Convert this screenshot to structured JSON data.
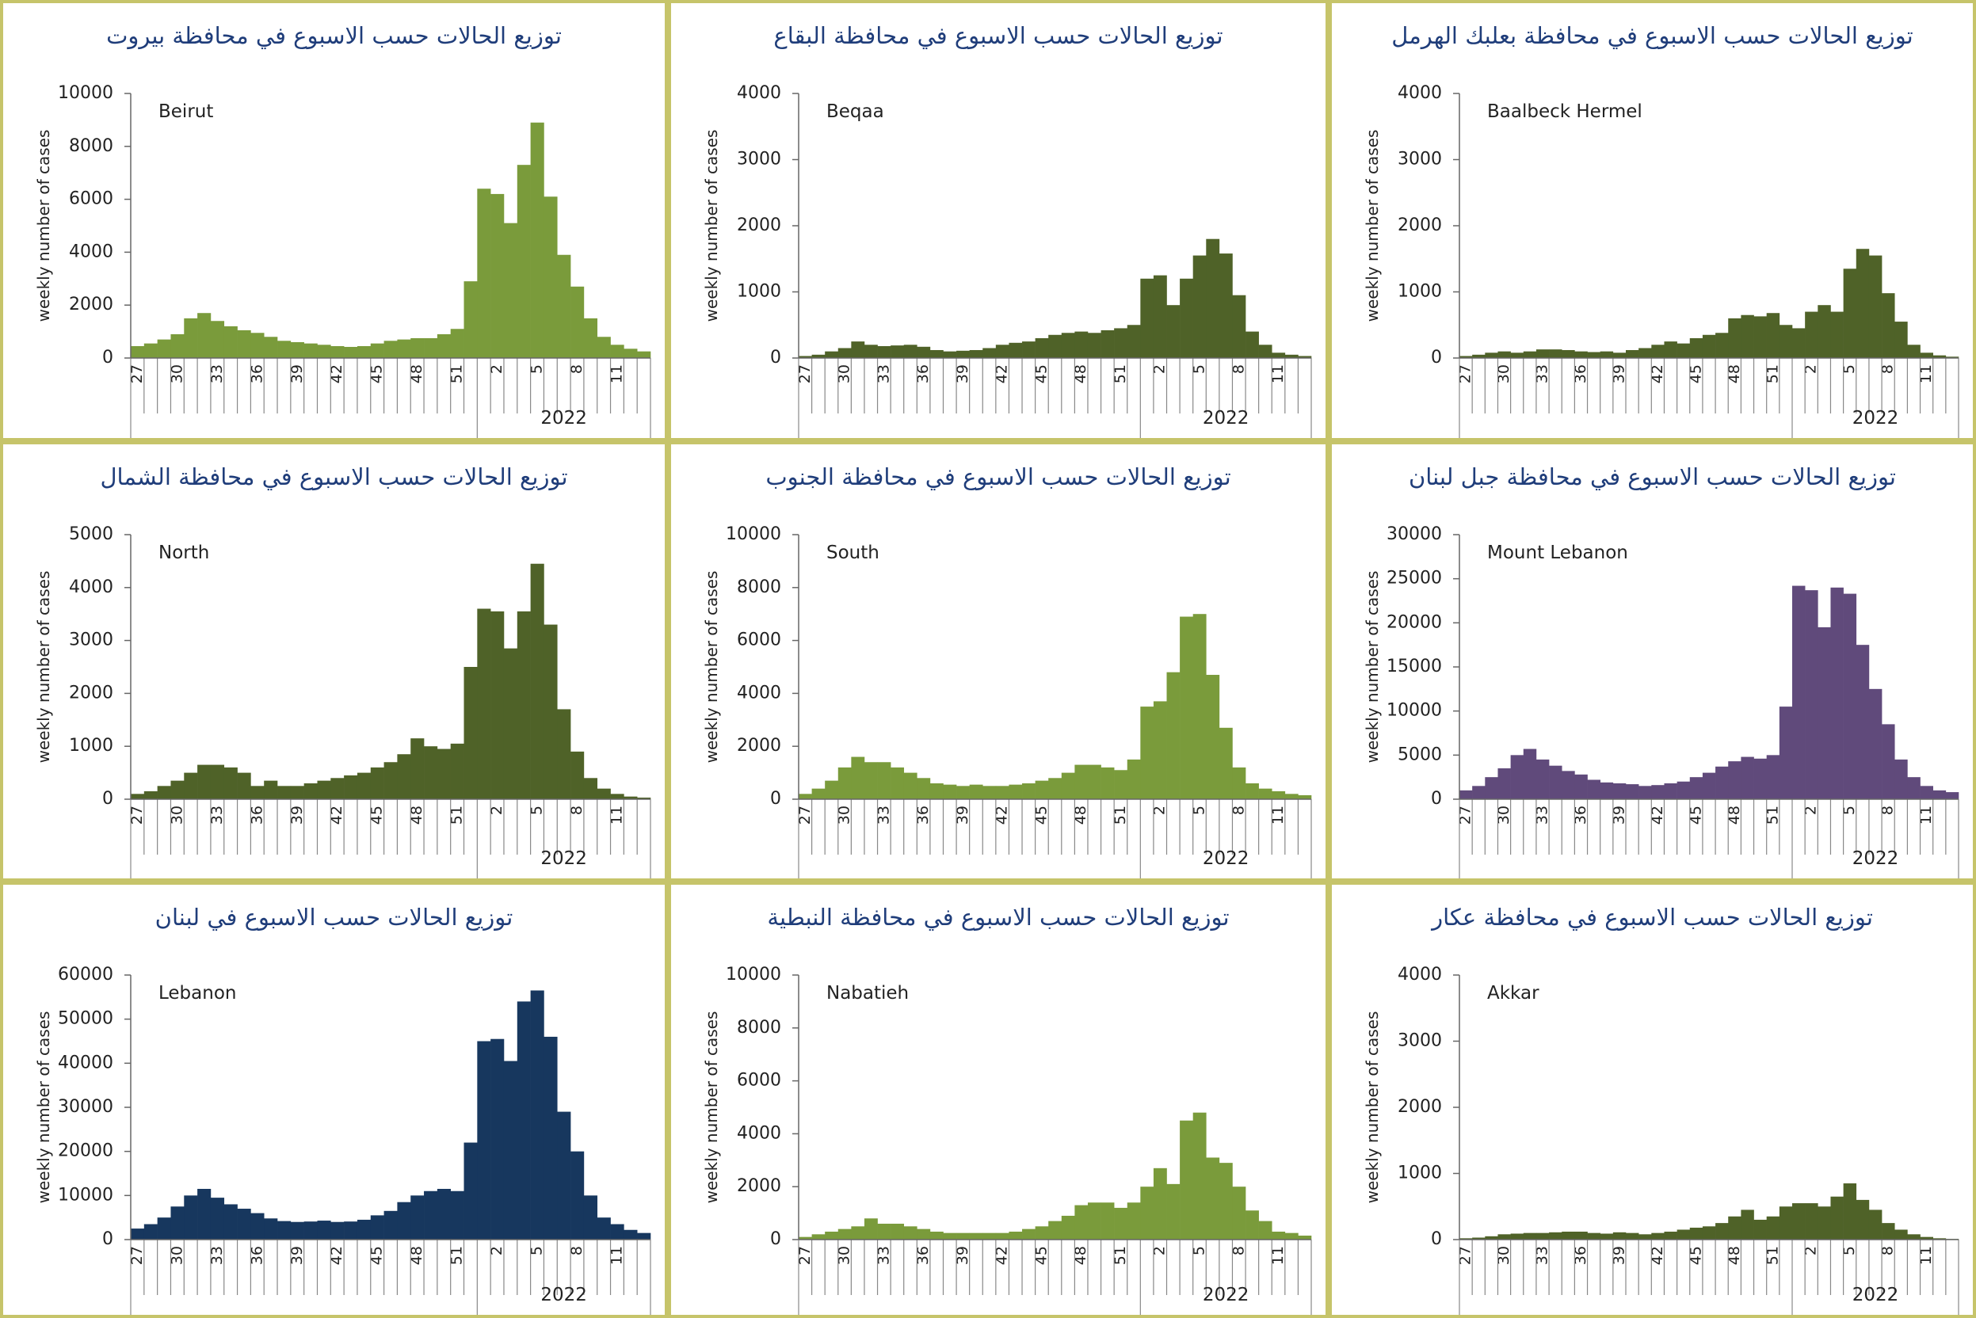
{
  "chart_data": [
    {
      "type": "bar",
      "title": "توزيع الحالات حسب الاسبوع في محافظة بيروت",
      "annotation": "Beirut",
      "y_label": "weekly number of cases",
      "group_label": "2022",
      "color": "#7a9b3b",
      "categories": [
        27,
        null,
        null,
        30,
        null,
        null,
        33,
        null,
        null,
        36,
        null,
        null,
        39,
        null,
        null,
        42,
        null,
        null,
        45,
        null,
        null,
        48,
        null,
        null,
        51,
        null,
        null,
        2,
        null,
        null,
        5,
        null,
        null,
        8,
        null,
        null,
        11,
        null,
        null
      ],
      "values": [
        450,
        550,
        700,
        900,
        1500,
        1700,
        1400,
        1200,
        1050,
        950,
        800,
        650,
        600,
        550,
        500,
        450,
        420,
        450,
        550,
        650,
        700,
        750,
        750,
        900,
        1100,
        2900,
        6400,
        6200,
        5100,
        7300,
        8900,
        6100,
        3900,
        2700,
        1500,
        800,
        500,
        350,
        250
      ],
      "ylim": [
        0,
        10000
      ],
      "yticks": [
        0,
        2000,
        4000,
        6000,
        8000,
        10000
      ]
    },
    {
      "type": "bar",
      "title": "توزيع الحالات حسب الاسبوع في محافظة البقاع",
      "annotation": "Beqaa",
      "y_label": "weekly number of cases",
      "group_label": "2022",
      "color": "#4f6228",
      "categories": [
        27,
        null,
        null,
        30,
        null,
        null,
        33,
        null,
        null,
        36,
        null,
        null,
        39,
        null,
        null,
        42,
        null,
        null,
        45,
        null,
        null,
        48,
        null,
        null,
        51,
        null,
        null,
        2,
        null,
        null,
        5,
        null,
        null,
        8,
        null,
        null,
        11,
        null,
        null
      ],
      "values": [
        30,
        50,
        100,
        150,
        250,
        200,
        180,
        190,
        200,
        170,
        120,
        100,
        110,
        120,
        150,
        200,
        230,
        250,
        300,
        350,
        380,
        400,
        380,
        420,
        450,
        500,
        1200,
        1250,
        800,
        1200,
        1550,
        1800,
        1580,
        950,
        400,
        200,
        80,
        50,
        30
      ],
      "ylim": [
        0,
        4000
      ],
      "yticks": [
        0,
        1000,
        2000,
        3000,
        4000
      ]
    },
    {
      "type": "bar",
      "title": "توزيع الحالات حسب الاسبوع في محافظة بعلبك الهرمل",
      "annotation": "Baalbeck Hermel",
      "y_label": "weekly number of cases",
      "group_label": "2022",
      "color": "#4f6228",
      "categories": [
        27,
        null,
        null,
        30,
        null,
        null,
        33,
        null,
        null,
        36,
        null,
        null,
        39,
        null,
        null,
        42,
        null,
        null,
        45,
        null,
        null,
        48,
        null,
        null,
        51,
        null,
        null,
        2,
        null,
        null,
        5,
        null,
        null,
        8,
        null,
        null,
        11,
        null,
        null
      ],
      "values": [
        30,
        50,
        80,
        100,
        80,
        100,
        130,
        130,
        120,
        100,
        90,
        100,
        80,
        120,
        150,
        200,
        250,
        220,
        300,
        350,
        380,
        600,
        650,
        630,
        680,
        500,
        450,
        700,
        800,
        700,
        1350,
        1650,
        1550,
        980,
        550,
        200,
        80,
        40,
        20
      ],
      "ylim": [
        0,
        4000
      ],
      "yticks": [
        0,
        1000,
        2000,
        3000,
        4000
      ]
    },
    {
      "type": "bar",
      "title": "توزيع الحالات حسب الاسبوع في محافظة الشمال",
      "annotation": "North",
      "y_label": "weekly number of cases",
      "group_label": "2022",
      "color": "#4f6228",
      "categories": [
        27,
        null,
        null,
        30,
        null,
        null,
        33,
        null,
        null,
        36,
        null,
        null,
        39,
        null,
        null,
        42,
        null,
        null,
        45,
        null,
        null,
        48,
        null,
        null,
        51,
        null,
        null,
        2,
        null,
        null,
        5,
        null,
        null,
        8,
        null,
        null,
        11,
        null,
        null
      ],
      "values": [
        100,
        150,
        250,
        350,
        500,
        650,
        650,
        600,
        500,
        250,
        350,
        250,
        250,
        300,
        350,
        400,
        450,
        500,
        600,
        700,
        850,
        1150,
        1000,
        950,
        1050,
        2500,
        3600,
        3550,
        2850,
        3550,
        4450,
        3300,
        1700,
        900,
        400,
        200,
        100,
        50,
        30
      ],
      "ylim": [
        0,
        5000
      ],
      "yticks": [
        0,
        1000,
        2000,
        3000,
        4000,
        5000
      ]
    },
    {
      "type": "bar",
      "title": "توزيع الحالات حسب الاسبوع في محافظة الجنوب",
      "annotation": "South",
      "y_label": "weekly number of cases",
      "group_label": "2022",
      "color": "#7a9b3b",
      "categories": [
        27,
        null,
        null,
        30,
        null,
        null,
        33,
        null,
        null,
        36,
        null,
        null,
        39,
        null,
        null,
        42,
        null,
        null,
        45,
        null,
        null,
        48,
        null,
        null,
        51,
        null,
        null,
        2,
        null,
        null,
        5,
        null,
        null,
        8,
        null,
        null,
        11,
        null,
        null
      ],
      "values": [
        200,
        400,
        700,
        1200,
        1600,
        1400,
        1400,
        1200,
        1000,
        800,
        600,
        550,
        500,
        550,
        500,
        500,
        550,
        600,
        700,
        800,
        1000,
        1300,
        1300,
        1200,
        1100,
        1500,
        3500,
        3700,
        4800,
        6900,
        7000,
        4700,
        2700,
        1200,
        600,
        400,
        300,
        200,
        150
      ],
      "ylim": [
        0,
        10000
      ],
      "yticks": [
        0,
        2000,
        4000,
        6000,
        8000,
        10000
      ]
    },
    {
      "type": "bar",
      "title": "توزيع الحالات حسب الاسبوع في محافظة جبل لبنان",
      "annotation": "Mount Lebanon",
      "y_label": "weekly number of cases",
      "group_label": "2022",
      "color": "#604a7b",
      "categories": [
        27,
        null,
        null,
        30,
        null,
        null,
        33,
        null,
        null,
        36,
        null,
        null,
        39,
        null,
        null,
        42,
        null,
        null,
        45,
        null,
        null,
        48,
        null,
        null,
        51,
        null,
        null,
        2,
        null,
        null,
        5,
        null,
        null,
        8,
        null,
        null,
        11,
        null,
        null
      ],
      "values": [
        1000,
        1500,
        2500,
        3500,
        5000,
        5700,
        4500,
        3800,
        3200,
        2800,
        2200,
        1900,
        1800,
        1700,
        1500,
        1600,
        1800,
        2000,
        2500,
        3000,
        3700,
        4300,
        4800,
        4600,
        5000,
        10500,
        24200,
        23700,
        19500,
        24000,
        23300,
        17500,
        12500,
        8500,
        4500,
        2500,
        1500,
        1000,
        800
      ],
      "ylim": [
        0,
        30000
      ],
      "yticks": [
        0,
        5000,
        10000,
        15000,
        20000,
        25000,
        30000
      ]
    },
    {
      "type": "bar",
      "title": "توزيع الحالات حسب الاسبوع في لبنان",
      "annotation": "Lebanon",
      "y_label": "weekly number of cases",
      "group_label": "2022",
      "color": "#17375e",
      "categories": [
        27,
        null,
        null,
        30,
        null,
        null,
        33,
        null,
        null,
        36,
        null,
        null,
        39,
        null,
        null,
        42,
        null,
        null,
        45,
        null,
        null,
        48,
        null,
        null,
        51,
        null,
        null,
        2,
        null,
        null,
        5,
        null,
        null,
        8,
        null,
        null,
        11,
        null,
        null
      ],
      "values": [
        2500,
        3500,
        5000,
        7500,
        10000,
        11500,
        9500,
        8000,
        7000,
        6000,
        4800,
        4200,
        4000,
        4100,
        4300,
        4000,
        4100,
        4500,
        5500,
        6500,
        8500,
        10000,
        11000,
        11500,
        11000,
        22000,
        45000,
        45500,
        40500,
        54000,
        56500,
        46000,
        29000,
        20000,
        10000,
        5000,
        3500,
        2200,
        1500
      ],
      "ylim": [
        0,
        60000
      ],
      "yticks": [
        0,
        10000,
        20000,
        30000,
        40000,
        50000,
        60000
      ]
    },
    {
      "type": "bar",
      "title": "توزيع الحالات حسب الاسبوع في محافظة النبطية",
      "annotation": "Nabatieh",
      "y_label": "weekly number of cases",
      "group_label": "2022",
      "color": "#7a9b3b",
      "categories": [
        27,
        null,
        null,
        30,
        null,
        null,
        33,
        null,
        null,
        36,
        null,
        null,
        39,
        null,
        null,
        42,
        null,
        null,
        45,
        null,
        null,
        48,
        null,
        null,
        51,
        null,
        null,
        2,
        null,
        null,
        5,
        null,
        null,
        8,
        null,
        null,
        11,
        null,
        null
      ],
      "values": [
        100,
        200,
        300,
        400,
        500,
        800,
        600,
        600,
        500,
        400,
        300,
        250,
        250,
        250,
        250,
        250,
        300,
        400,
        500,
        700,
        900,
        1300,
        1400,
        1400,
        1200,
        1400,
        2000,
        2700,
        2100,
        4500,
        4800,
        3100,
        2900,
        2000,
        1100,
        700,
        300,
        250,
        150
      ],
      "ylim": [
        0,
        10000
      ],
      "yticks": [
        0,
        2000,
        4000,
        6000,
        8000,
        10000
      ]
    },
    {
      "type": "bar",
      "title": "توزيع الحالات حسب الاسبوع في محافظة عكار",
      "annotation": "Akkar",
      "y_label": "weekly number of cases",
      "group_label": "2022",
      "color": "#4f6228",
      "categories": [
        27,
        null,
        null,
        30,
        null,
        null,
        33,
        null,
        null,
        36,
        null,
        null,
        39,
        null,
        null,
        42,
        null,
        null,
        45,
        null,
        null,
        48,
        null,
        null,
        51,
        null,
        null,
        2,
        null,
        null,
        5,
        null,
        null,
        8,
        null,
        null,
        11,
        null,
        null
      ],
      "values": [
        20,
        30,
        50,
        80,
        90,
        100,
        100,
        110,
        120,
        120,
        100,
        90,
        110,
        100,
        80,
        100,
        120,
        150,
        180,
        200,
        250,
        350,
        450,
        300,
        350,
        500,
        550,
        550,
        500,
        650,
        850,
        600,
        450,
        250,
        150,
        80,
        40,
        20,
        10
      ],
      "ylim": [
        0,
        4000
      ],
      "yticks": [
        0,
        1000,
        2000,
        3000,
        4000
      ]
    }
  ]
}
